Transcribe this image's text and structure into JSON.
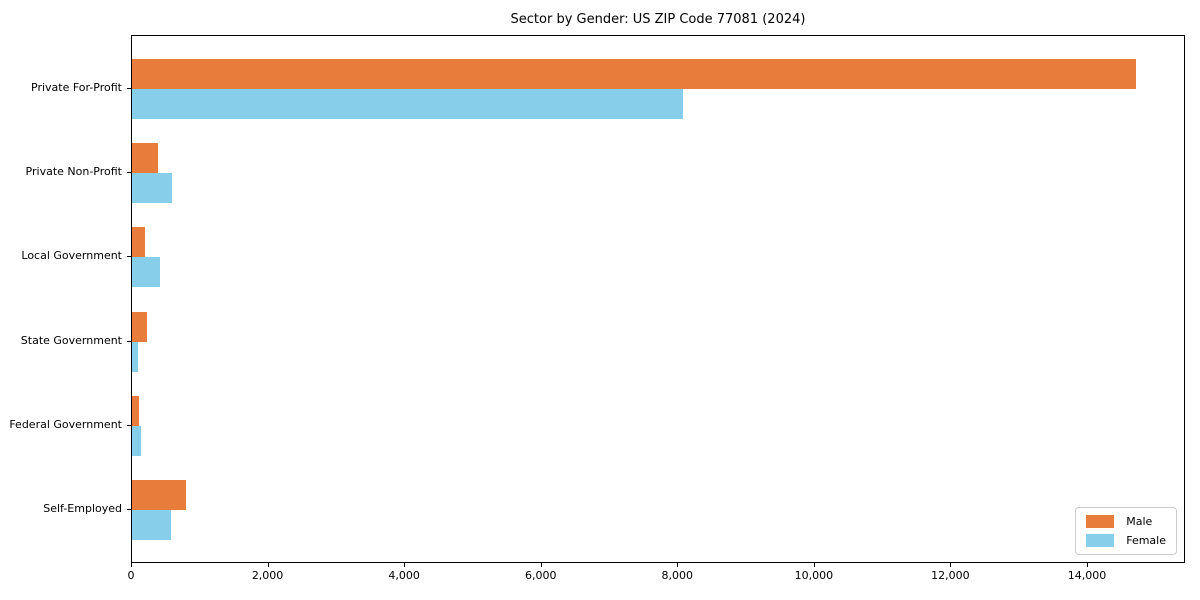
{
  "title": "Sector by Gender: US ZIP Code 77081 (2024)",
  "chart_data": {
    "type": "bar",
    "orientation": "horizontal",
    "title": "Sector by Gender: US ZIP Code 77081 (2024)",
    "categories": [
      "Private For-Profit",
      "Private Non-Profit",
      "Local Government",
      "State Government",
      "Federal Government",
      "Self-Employed"
    ],
    "series": [
      {
        "name": "Male",
        "color": "#e87d3b",
        "values": [
          14700,
          380,
          195,
          215,
          105,
          790
        ]
      },
      {
        "name": "Female",
        "color": "#87ceeb",
        "values": [
          8070,
          580,
          415,
          95,
          125,
          570
        ]
      }
    ],
    "xlabel": "",
    "ylabel": "",
    "xlim": [
      0,
      15435
    ],
    "xticks": [
      0,
      2000,
      4000,
      6000,
      8000,
      10000,
      12000,
      14000
    ],
    "grid": false,
    "legend_position": "lower right"
  }
}
